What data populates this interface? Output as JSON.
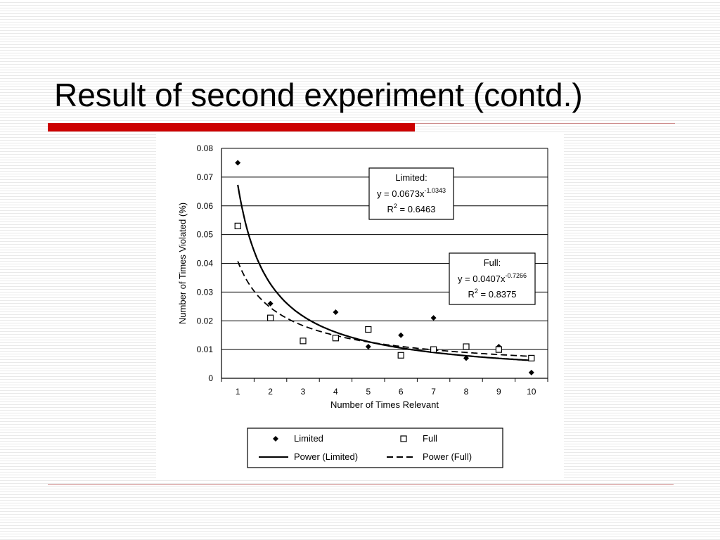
{
  "slide": {
    "title": "Result of second experiment (contd.)"
  },
  "colors": {
    "accent": "#cc0000",
    "page_background": "#ffffff",
    "stripe": "#e9e9e9"
  },
  "chart_data": {
    "type": "scatter",
    "xlabel": "Number of Times Relevant",
    "ylabel": "Number of Times Violated (%)",
    "x_ticks": [
      "1",
      "2",
      "3",
      "4",
      "5",
      "6",
      "7",
      "8",
      "9",
      "10"
    ],
    "y_ticks": [
      "0",
      "0.01",
      "0.02",
      "0.03",
      "0.04",
      "0.05",
      "0.06",
      "0.07",
      "0.08"
    ],
    "xlim": [
      0.5,
      10.5
    ],
    "ylim": [
      0,
      0.08
    ],
    "grid": "horizontal",
    "legend_position": "bottom",
    "series": [
      {
        "name": "Limited",
        "marker": "filled-diamond",
        "x": [
          1,
          2,
          4,
          5,
          6,
          7,
          8,
          9,
          10
        ],
        "y": [
          0.075,
          0.026,
          0.023,
          0.011,
          0.015,
          0.021,
          0.007,
          0.011,
          0.002
        ]
      },
      {
        "name": "Full",
        "marker": "open-square",
        "x": [
          1,
          2,
          3,
          4,
          5,
          6,
          7,
          8,
          9,
          10
        ],
        "y": [
          0.053,
          0.021,
          0.013,
          0.014,
          0.017,
          0.008,
          0.01,
          0.011,
          0.01,
          0.007
        ]
      }
    ],
    "fits": [
      {
        "name": "Power (Limited)",
        "style": "solid",
        "coef": 0.0673,
        "exp": -1.0343
      },
      {
        "name": "Power (Full)",
        "style": "dashed",
        "coef": 0.0407,
        "exp": -0.7266
      }
    ],
    "annotations": [
      {
        "title": "Limited:",
        "eq_prefix": "y = 0.0673x",
        "eq_exp": "-1.0343",
        "r2_prefix": "R",
        "r2_sup": "2",
        "r2_suffix": " = 0.6463"
      },
      {
        "title": "Full:",
        "eq_prefix": "y = 0.0407x",
        "eq_exp": "-0.7266",
        "r2_prefix": "R",
        "r2_sup": "2",
        "r2_suffix": " = 0.8375"
      }
    ],
    "legend": [
      {
        "label": "Limited",
        "symbol": "filled-diamond"
      },
      {
        "label": "Full",
        "symbol": "open-square"
      },
      {
        "label": "Power (Limited)",
        "symbol": "solid-line"
      },
      {
        "label": "Power (Full)",
        "symbol": "dashed-line"
      }
    ]
  }
}
